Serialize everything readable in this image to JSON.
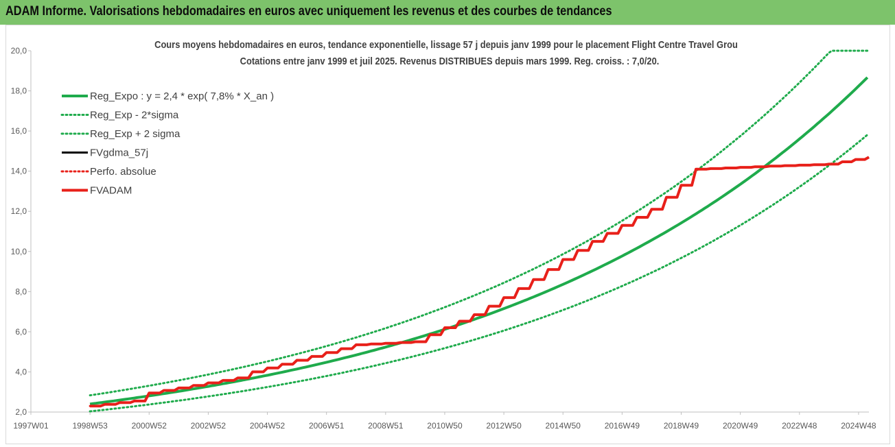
{
  "header": {
    "title": "ADAM Informe. Valorisations hebdomadaires en euros avec uniquement les revenus et des courbes de tendances"
  },
  "chart_data": {
    "type": "line",
    "title": "Cours moyens hebdomadaires en euros, tendance exponentielle, lissage 57 j depuis janv 1999  pour le placement Flight Centre Travel Grou",
    "subtitle": "Cotations entre janv 1999 et juil 2025. Revenus DISTRIBUES depuis mars 1999.  Reg.  croiss. : 7,0/20.",
    "xlabel": "",
    "ylabel": "",
    "ylim": [
      2,
      20
    ],
    "xlim": [
      1997.0,
      2025.35
    ],
    "yticks": [
      "2,0",
      "4,0",
      "6,0",
      "8,0",
      "10,0",
      "12,0",
      "14,0",
      "16,0",
      "18,0",
      "20,0"
    ],
    "xticks": [
      "1997W01",
      "1998W53",
      "2000W52",
      "2002W52",
      "2004W52",
      "2006W51",
      "2008W51",
      "2010W50",
      "2012W50",
      "2014W50",
      "2016W49",
      "2018W49",
      "2020W49",
      "2022W48",
      "2024W48"
    ],
    "grid": false,
    "legend_position": "top-left",
    "series": [
      {
        "name": "Reg_Expo : y = 2,4 * exp( 7,8% *  X_an )",
        "color": "#1fab4c",
        "style": "solid",
        "function": {
          "a": 2.4,
          "r": 0.078,
          "x0": 1999.0,
          "factor": 1.0
        }
      },
      {
        "name": "Reg_Exp - 2*sigma",
        "color": "#1fab4c",
        "style": "dotted",
        "function": {
          "a": 2.4,
          "r": 0.078,
          "x0": 1999.0,
          "factor": 0.847
        }
      },
      {
        "name": "Reg_Exp + 2 sigma",
        "color": "#1fab4c",
        "style": "dotted",
        "function": {
          "a": 2.4,
          "r": 0.078,
          "x0": 1999.0,
          "factor": 1.18
        }
      },
      {
        "name": "FVgdma_57j",
        "color": "#000000",
        "style": "solid",
        "x": [
          1999.0,
          2000.5,
          2001.0,
          2004.0,
          2004.5,
          2008.0,
          2010.0,
          2011.0,
          2012.0,
          2013.0,
          2014.0,
          2015.0,
          2016.0,
          2017.0,
          2018.0,
          2019.0,
          2019.5,
          2022.0,
          2024.0,
          2025.35
        ],
        "values": [
          2.3,
          2.55,
          2.95,
          3.7,
          4.0,
          5.35,
          5.5,
          6.2,
          6.85,
          7.7,
          8.6,
          9.6,
          10.5,
          11.3,
          12.1,
          13.3,
          14.1,
          14.25,
          14.35,
          14.7
        ]
      },
      {
        "name": "Perfo. absolue",
        "color": "#e8201a",
        "style": "dotted",
        "x": [
          1999.0,
          2000.5,
          2001.0,
          2004.0,
          2004.5,
          2008.0,
          2010.0,
          2011.0,
          2012.0,
          2013.0,
          2014.0,
          2015.0,
          2016.0,
          2017.0,
          2018.0,
          2019.0,
          2019.5,
          2022.0,
          2024.0,
          2025.35
        ],
        "values": [
          2.3,
          2.55,
          2.95,
          3.7,
          4.0,
          5.35,
          5.5,
          6.2,
          6.85,
          7.7,
          8.6,
          9.6,
          10.5,
          11.3,
          12.1,
          13.3,
          14.1,
          14.25,
          14.35,
          14.7
        ]
      },
      {
        "name": "FVADAM",
        "color": "#e8201a",
        "style": "thick",
        "x": [
          1999.0,
          2000.5,
          2001.0,
          2004.0,
          2004.5,
          2008.0,
          2010.0,
          2011.0,
          2012.0,
          2013.0,
          2014.0,
          2015.0,
          2016.0,
          2017.0,
          2018.0,
          2019.0,
          2019.5,
          2022.0,
          2024.0,
          2025.35
        ],
        "values": [
          2.3,
          2.55,
          2.95,
          3.7,
          4.0,
          5.35,
          5.5,
          6.2,
          6.85,
          7.7,
          8.6,
          9.6,
          10.5,
          11.3,
          12.1,
          13.3,
          14.1,
          14.25,
          14.35,
          14.7
        ]
      }
    ]
  }
}
